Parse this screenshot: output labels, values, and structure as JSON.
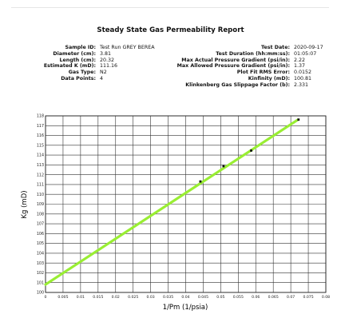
{
  "report": {
    "title": "Steady State Gas Permeability Report",
    "left_fields": [
      {
        "label": "Sample ID:",
        "value": "Test Run GREY BEREA"
      },
      {
        "label": "Diameter (cm):",
        "value": "3.81"
      },
      {
        "label": "Length (cm):",
        "value": "20.32"
      },
      {
        "label": "Estimated K (mD):",
        "value": "111.16"
      },
      {
        "label": "Gas Type:",
        "value": "N2"
      },
      {
        "label": "Data Points:",
        "value": "4"
      }
    ],
    "right_fields": [
      {
        "label": "Test Date:",
        "value": "2020-09-17"
      },
      {
        "label": "Test Duration (hh:mm:ss):",
        "value": "01:05:07"
      },
      {
        "label": "Max Actual Pressure Gradient (psi/in):",
        "value": "2.22"
      },
      {
        "label": "Max Allowed Pressure Gradient (psi/in):",
        "value": "1.37"
      },
      {
        "label": "Plot Fit RMS Error:",
        "value": "0.0152"
      },
      {
        "label": "Kinfinity (mD):",
        "value": "100.81"
      },
      {
        "label": "Klinkenberg Gas Slippage Factor (b):",
        "value": "2.331"
      }
    ]
  },
  "chart_data": {
    "type": "scatter",
    "xlabel": "1/Pm (1/psia)",
    "ylabel": "Kg (mD)",
    "xlim": [
      0,
      0.08
    ],
    "ylim": [
      100,
      118
    ],
    "x_ticks": [
      "0",
      "0.005",
      "0.01",
      "0.015",
      "0.02",
      "0.025",
      "0.03",
      "0.035",
      "0.04",
      "0.045",
      "0.05",
      "0.055",
      "0.06",
      "0.065",
      "0.07",
      "0.075",
      "0.08"
    ],
    "y_ticks": [
      "100",
      "101",
      "102",
      "103",
      "104",
      "105",
      "106",
      "107",
      "108",
      "109",
      "110",
      "111",
      "112",
      "113",
      "114",
      "115",
      "116",
      "117",
      "118"
    ],
    "grid": true,
    "points": [
      {
        "x": 0.0442,
        "y": 111.31
      },
      {
        "x": 0.0508,
        "y": 112.87
      },
      {
        "x": 0.0587,
        "y": 114.46
      },
      {
        "x": 0.0722,
        "y": 117.62
      }
    ],
    "fit_line": {
      "x": [
        0,
        0.072
      ],
      "y": [
        100.81,
        117.6
      ]
    },
    "colors": {
      "fit": "#99ee33",
      "points": "#111111",
      "grid": "#333333"
    }
  }
}
